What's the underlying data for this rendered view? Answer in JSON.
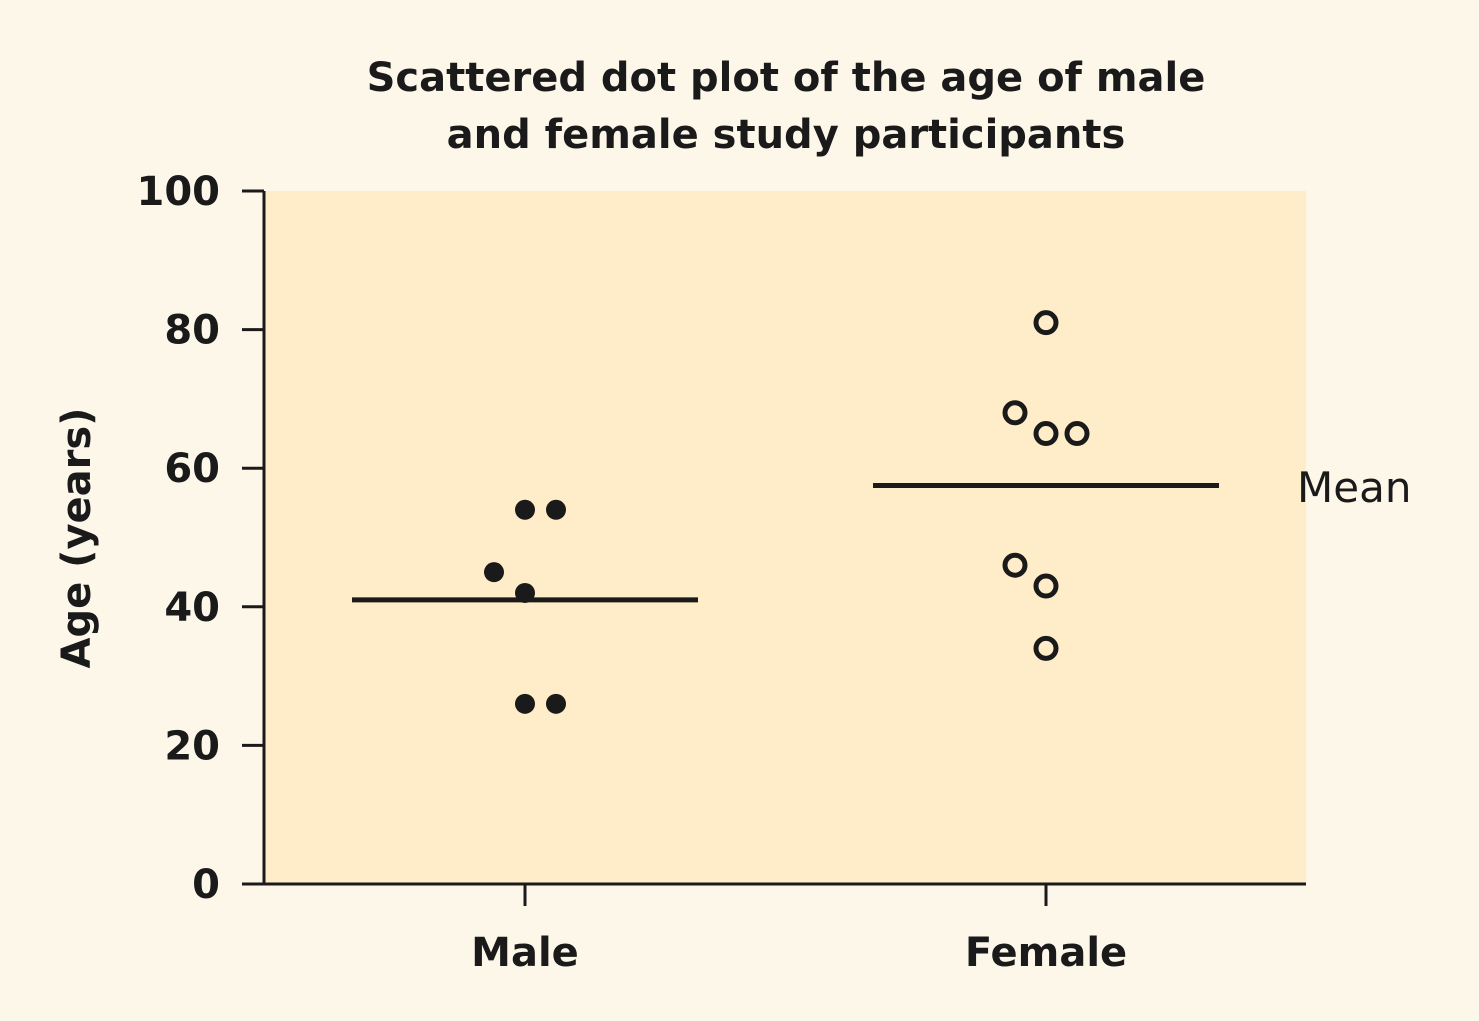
{
  "chart_data": {
    "type": "scatter",
    "title": "Scattered dot plot of the age of male and female study participants",
    "title_lines": [
      "Scattered dot plot of the age of male",
      "and female study participants"
    ],
    "xlabel": "",
    "ylabel": "Age (years)",
    "ylim": [
      0,
      100
    ],
    "yticks": [
      "0",
      "20",
      "40",
      "60",
      "80",
      "100"
    ],
    "categories": [
      "Male",
      "Female"
    ],
    "grid": false,
    "legend": "none",
    "series": [
      {
        "name": "Male",
        "marker": "filled",
        "points": [
          {
            "category": "Male",
            "value": 54
          },
          {
            "category": "Male",
            "value": 54
          },
          {
            "category": "Male",
            "value": 45
          },
          {
            "category": "Male",
            "value": 42
          },
          {
            "category": "Male",
            "value": 26
          },
          {
            "category": "Male",
            "value": 26
          }
        ],
        "mean": 41
      },
      {
        "name": "Female",
        "marker": "open",
        "points": [
          {
            "category": "Female",
            "value": 81
          },
          {
            "category": "Female",
            "value": 68
          },
          {
            "category": "Female",
            "value": 65
          },
          {
            "category": "Female",
            "value": 65
          },
          {
            "category": "Female",
            "value": 46
          },
          {
            "category": "Female",
            "value": 43
          },
          {
            "category": "Female",
            "value": 34
          }
        ],
        "mean": 57.5
      }
    ],
    "annotation": "Mean",
    "colors": {
      "page_background": "#fdf7ea",
      "plot_background": "#feedc8",
      "ink": "#1a1a1a"
    }
  }
}
